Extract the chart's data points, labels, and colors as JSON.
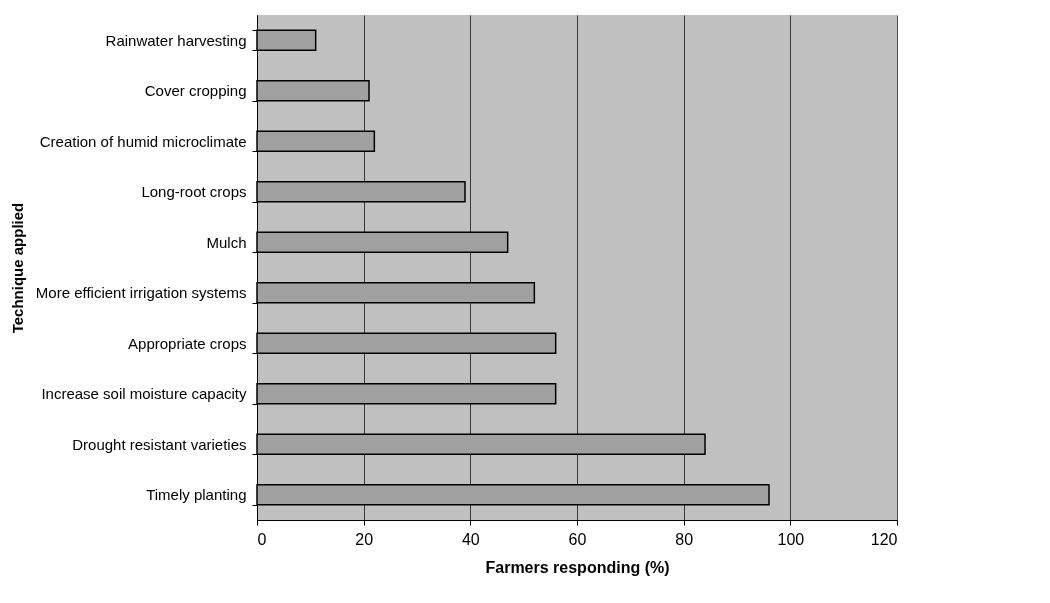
{
  "chart_data": {
    "type": "bar",
    "orientation": "horizontal",
    "categories": [
      "Rainwater harvesting",
      "Cover cropping",
      "Creation of humid microclimate",
      "Long-root crops",
      "Mulch",
      "More efficient irrigation systems",
      "Appropriate crops",
      "Increase soil moisture capacity",
      "Drought resistant varieties",
      "Timely planting"
    ],
    "values": [
      11,
      21,
      22,
      39,
      47,
      52,
      56,
      56,
      84,
      96
    ],
    "color": "#a0a0a0",
    "xlabel": "Farmers responding (%)",
    "ylabel": "Technique applied",
    "xlim": [
      0,
      120
    ],
    "xticks": [
      0,
      20,
      40,
      60,
      80,
      100,
      120
    ],
    "grid": "x"
  }
}
